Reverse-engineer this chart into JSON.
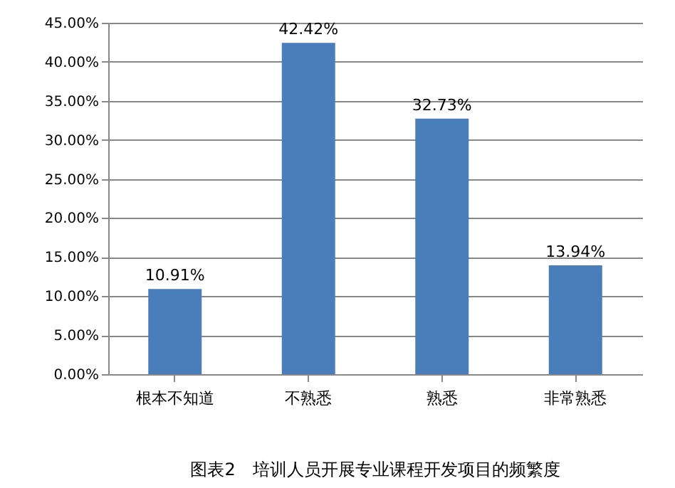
{
  "chart_data": {
    "type": "bar",
    "title": "图表2　培训人员开展专业课程开发项目的频繁度",
    "categories": [
      "根本不知道",
      "不熟悉",
      "熟悉",
      "非常熟悉"
    ],
    "values": [
      10.91,
      42.42,
      32.73,
      13.94
    ],
    "value_labels": [
      "10.91%",
      "42.42%",
      "32.73%",
      "13.94%"
    ],
    "color": "#4a7ebb",
    "ylim": [
      0,
      45
    ],
    "yticks": [
      {
        "value": 0,
        "label": "0.00%"
      },
      {
        "value": 5,
        "label": "5.00%"
      },
      {
        "value": 10,
        "label": "10.00%"
      },
      {
        "value": 15,
        "label": "15.00%"
      },
      {
        "value": 20,
        "label": "20.00%"
      },
      {
        "value": 25,
        "label": "25.00%"
      },
      {
        "value": 30,
        "label": "30.00%"
      },
      {
        "value": 35,
        "label": "35.00%"
      },
      {
        "value": 40,
        "label": "40.00%"
      },
      {
        "value": 45,
        "label": "45.00%"
      }
    ],
    "grid": "y"
  }
}
